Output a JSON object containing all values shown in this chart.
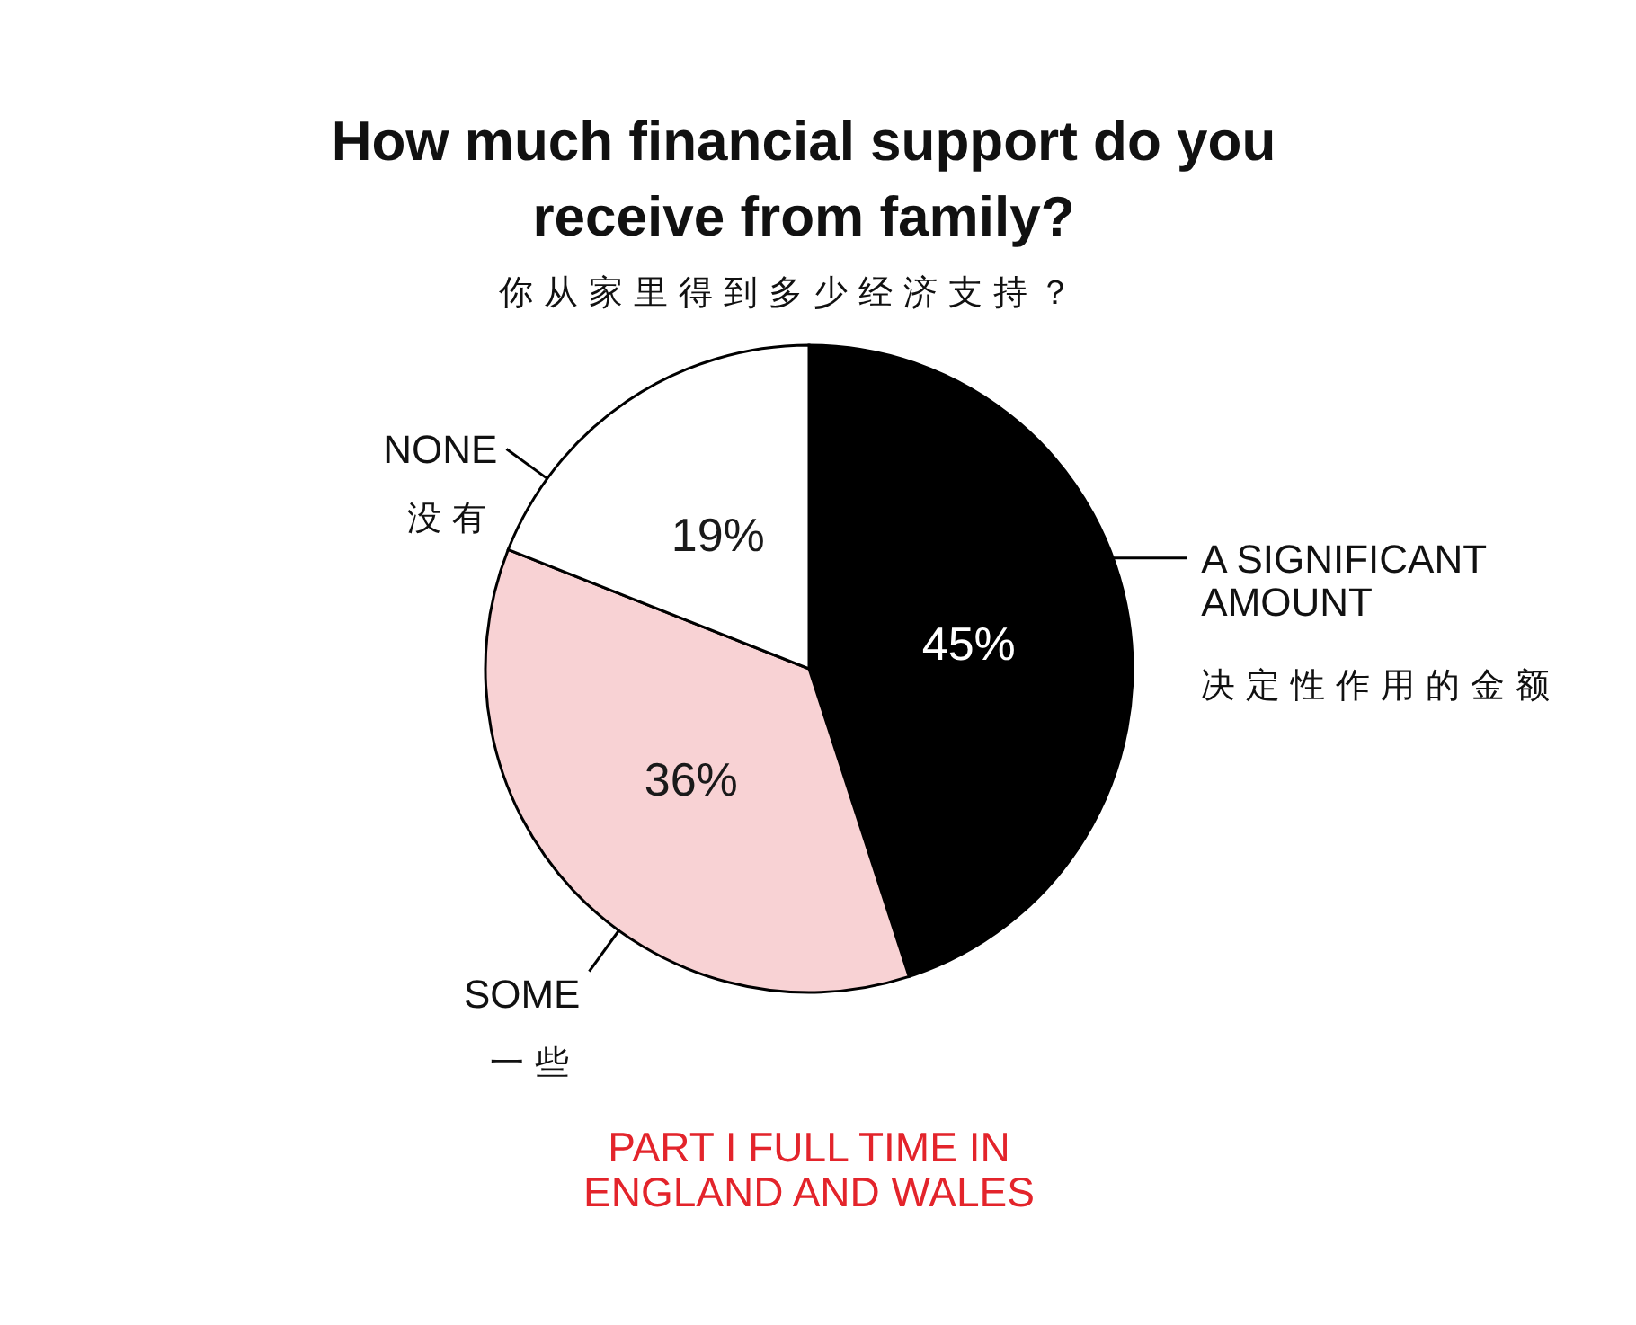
{
  "chart_data": {
    "type": "pie",
    "title": "How much financial support do you receive from family?",
    "subtitle": "你从家里得到多少经济支持？",
    "categories": [
      "A SIGNIFICANT\nAMOUNT\n决定性作用的金额",
      "SOME\n一些",
      "NONE\n没有"
    ],
    "values": [
      45,
      36,
      19
    ],
    "colors": [
      "#000000",
      "#f8d2d4",
      "#ffffff"
    ],
    "value_labels": [
      "45%",
      "36%",
      "19%"
    ],
    "annotations": [
      "PART I FULL TIME IN ENGLAND AND WALES"
    ]
  }
}
